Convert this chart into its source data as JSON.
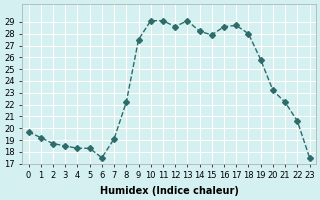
{
  "x": [
    0,
    1,
    2,
    3,
    4,
    5,
    6,
    7,
    8,
    9,
    10,
    11,
    12,
    13,
    14,
    15,
    16,
    17,
    18,
    19,
    20,
    21,
    22,
    23
  ],
  "y": [
    19.7,
    19.2,
    18.7,
    18.5,
    18.3,
    18.3,
    17.5,
    19.1,
    22.2,
    27.5,
    29.1,
    29.1,
    28.6,
    29.1,
    28.2,
    27.9,
    28.6,
    28.7,
    28.0,
    25.8,
    23.2,
    22.2,
    20.6,
    17.5
  ],
  "line_color": "#2e6b6b",
  "marker": "D",
  "markersize": 3,
  "xlabel": "Humidex (Indice chaleur)",
  "ylabel": "",
  "xlim": [
    -0.5,
    23.5
  ],
  "ylim": [
    17,
    30
  ],
  "yticks": [
    17,
    18,
    19,
    20,
    21,
    22,
    23,
    24,
    25,
    26,
    27,
    28,
    29
  ],
  "xticks": [
    0,
    1,
    2,
    3,
    4,
    5,
    6,
    7,
    8,
    9,
    10,
    11,
    12,
    13,
    14,
    15,
    16,
    17,
    18,
    19,
    20,
    21,
    22,
    23
  ],
  "bg_color": "#d4f0f0",
  "grid_color": "#ffffff",
  "tick_fontsize": 6,
  "label_fontsize": 7
}
